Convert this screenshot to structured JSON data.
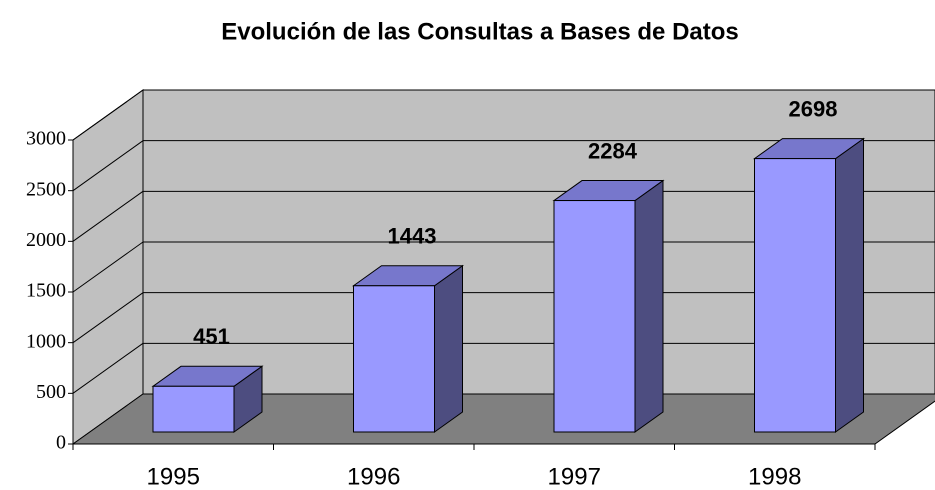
{
  "chart_data": {
    "type": "bar",
    "title": "Evolución de las Consultas a Bases de Datos",
    "categories": [
      "1995",
      "1996",
      "1997",
      "1998"
    ],
    "values": [
      451,
      1443,
      2284,
      2698
    ],
    "color": "#9999ff",
    "ylim": [
      0,
      3000
    ],
    "yticks": [
      0,
      500,
      1000,
      1500,
      2000,
      2500,
      3000
    ],
    "grid": true
  }
}
